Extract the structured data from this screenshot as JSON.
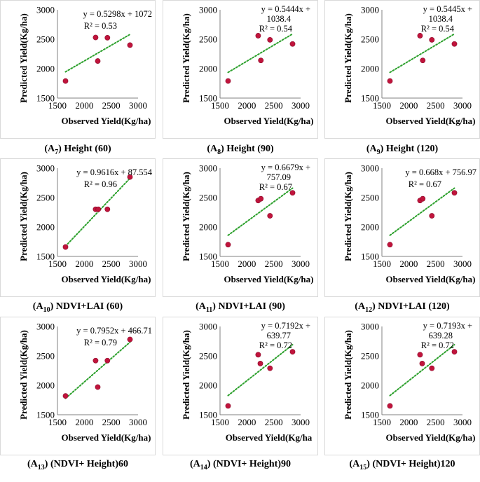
{
  "colors": {
    "point": "#c0143c",
    "trendline": "#2ca02c",
    "axis": "#808080",
    "border": "#d9d9d9"
  },
  "chart_data": [
    {
      "type": "scatter",
      "caption": {
        "prefix": "(A",
        "sub": "7",
        "suffix": ") Height (60)"
      },
      "xlabel": "Observed Yield(Kg/ha)",
      "ylabel": "Predicted Yield(Kg/ha)",
      "xlim": [
        1500,
        3000
      ],
      "ylim": [
        1500,
        3000
      ],
      "xticks": [
        "1500",
        "2000",
        "2500",
        "3000"
      ],
      "yticks": [
        "1500",
        "2000",
        "2500",
        "3000"
      ],
      "equation": [
        "y = 0.5298x + 1072"
      ],
      "r2": "R² = 0.53",
      "points": [
        {
          "x": 1650,
          "y": 1790
        },
        {
          "x": 2210,
          "y": 2530
        },
        {
          "x": 2250,
          "y": 2130
        },
        {
          "x": 2430,
          "y": 2525
        },
        {
          "x": 2850,
          "y": 2400
        }
      ],
      "trend": {
        "slope": 0.5298,
        "intercept": 1072,
        "x_range": [
          1650,
          2850
        ]
      }
    },
    {
      "type": "scatter",
      "caption": {
        "prefix": "(A",
        "sub": "8",
        "suffix": ") Height (90)"
      },
      "xlabel": "Observed Yield(Kg/ha)",
      "ylabel": "Predicted Yield(Kg/ha)",
      "xlim": [
        1500,
        3000
      ],
      "ylim": [
        1500,
        3000
      ],
      "xticks": [
        "1500",
        "2000",
        "2500",
        "3000"
      ],
      "yticks": [
        "1500",
        "2000",
        "2500",
        "3000"
      ],
      "equation": [
        "y = 0.5444x +",
        "1038.4"
      ],
      "r2": "R² = 0.54",
      "points": [
        {
          "x": 1650,
          "y": 1790
        },
        {
          "x": 2210,
          "y": 2560
        },
        {
          "x": 2260,
          "y": 2140
        },
        {
          "x": 2430,
          "y": 2490
        },
        {
          "x": 2850,
          "y": 2420
        }
      ],
      "trend": {
        "slope": 0.5444,
        "intercept": 1038.4,
        "x_range": [
          1650,
          2850
        ]
      }
    },
    {
      "type": "scatter",
      "caption": {
        "prefix": "(A",
        "sub": "9",
        "suffix": ") Height (120)"
      },
      "xlabel": "Observed Yield(Kg/ha)",
      "ylabel": "Predicted Yield(Kg/ha)",
      "xlim": [
        1500,
        3000
      ],
      "ylim": [
        1500,
        3000
      ],
      "xticks": [
        "1500",
        "2000",
        "2500",
        "3000"
      ],
      "yticks": [
        "1500",
        "2000",
        "2500",
        "3000"
      ],
      "equation": [
        "y = 0.5445x +",
        "1038.4"
      ],
      "r2": "R² = 0.54",
      "points": [
        {
          "x": 1650,
          "y": 1790
        },
        {
          "x": 2210,
          "y": 2560
        },
        {
          "x": 2260,
          "y": 2140
        },
        {
          "x": 2430,
          "y": 2490
        },
        {
          "x": 2850,
          "y": 2420
        }
      ],
      "trend": {
        "slope": 0.5445,
        "intercept": 1038.4,
        "x_range": [
          1650,
          2850
        ]
      }
    },
    {
      "type": "scatter",
      "caption": {
        "prefix": "(A",
        "sub": "10",
        "suffix": ") NDVI+LAI (60)"
      },
      "xlabel": "Observed Yield(Kg/ha)",
      "ylabel": "Predicted Yield(Kg/ha)",
      "xlim": [
        1500,
        3000
      ],
      "ylim": [
        1500,
        3000
      ],
      "xticks": [
        "1500",
        "2000",
        "2500",
        "3000"
      ],
      "yticks": [
        "1500",
        "2000",
        "2500",
        "3000"
      ],
      "equation": [
        "y = 0.9616x + 87.554"
      ],
      "r2": "R² = 0.96",
      "points": [
        {
          "x": 1650,
          "y": 1660
        },
        {
          "x": 2210,
          "y": 2300
        },
        {
          "x": 2260,
          "y": 2300
        },
        {
          "x": 2430,
          "y": 2300
        },
        {
          "x": 2850,
          "y": 2850
        }
      ],
      "trend": {
        "slope": 0.9616,
        "intercept": 87.554,
        "x_range": [
          1650,
          2850
        ]
      }
    },
    {
      "type": "scatter",
      "caption": {
        "prefix": "(A",
        "sub": "11",
        "suffix": ") NDVI+LAI (90)"
      },
      "xlabel": "Observed Yield(Kg/ha)",
      "ylabel": "Predicted Yield(Kg/ha)",
      "xlim": [
        1500,
        3000
      ],
      "ylim": [
        1500,
        3000
      ],
      "xticks": [
        "1500",
        "2000",
        "2500",
        "3000"
      ],
      "yticks": [
        "1500",
        "2000",
        "2500",
        "3000"
      ],
      "equation": [
        "y = 0.6679x +",
        "757.09"
      ],
      "r2": "R² = 0.67",
      "points": [
        {
          "x": 1650,
          "y": 1700
        },
        {
          "x": 2210,
          "y": 2450
        },
        {
          "x": 2260,
          "y": 2480
        },
        {
          "x": 2430,
          "y": 2190
        },
        {
          "x": 2850,
          "y": 2580
        }
      ],
      "trend": {
        "slope": 0.6679,
        "intercept": 757.09,
        "x_range": [
          1650,
          2850
        ]
      }
    },
    {
      "type": "scatter",
      "caption": {
        "prefix": "(A",
        "sub": "12",
        "suffix": ") NDVI+LAI (120)"
      },
      "xlabel": "Observed Yield(Kg/ha)",
      "ylabel": "Predicted Yield(Kg/ha)",
      "xlim": [
        1500,
        3000
      ],
      "ylim": [
        1500,
        3000
      ],
      "xticks": [
        "1500",
        "2000",
        "2500",
        "3000"
      ],
      "yticks": [
        "1500",
        "2000",
        "2500",
        "3000"
      ],
      "equation": [
        "y = 0.668x + 756.97"
      ],
      "r2": "R² = 0.67",
      "points": [
        {
          "x": 1650,
          "y": 1700
        },
        {
          "x": 2210,
          "y": 2450
        },
        {
          "x": 2260,
          "y": 2480
        },
        {
          "x": 2430,
          "y": 2190
        },
        {
          "x": 2850,
          "y": 2580
        }
      ],
      "trend": {
        "slope": 0.668,
        "intercept": 756.97,
        "x_range": [
          1650,
          2850
        ]
      }
    },
    {
      "type": "scatter",
      "caption": {
        "prefix": "(A",
        "sub": "13",
        "suffix": ") (NDVI+ Height)60"
      },
      "xlabel": "Observed Yield(Kg/ha)",
      "ylabel": "Predicted Yield(Kg/ha)",
      "xlim": [
        1500,
        3000
      ],
      "ylim": [
        1500,
        3000
      ],
      "xticks": [
        "1500",
        "2000",
        "2500",
        "3000"
      ],
      "yticks": [
        "1500",
        "2000",
        "2500",
        "3000"
      ],
      "equation": [
        "y = 0.7952x + 466.71"
      ],
      "r2": "R² = 0.79",
      "points": [
        {
          "x": 1650,
          "y": 1820
        },
        {
          "x": 2210,
          "y": 2420
        },
        {
          "x": 2250,
          "y": 1970
        },
        {
          "x": 2430,
          "y": 2420
        },
        {
          "x": 2850,
          "y": 2780
        }
      ],
      "trend": {
        "slope": 0.7952,
        "intercept": 466.71,
        "x_range": [
          1650,
          2850
        ]
      }
    },
    {
      "type": "scatter",
      "caption": {
        "prefix": "(A",
        "sub": "14",
        "suffix": ") (NDVI+ Height)90"
      },
      "xlabel": "Observed Yield(Kg/ha",
      "ylabel": "Predicted Yield(Kg/ha)",
      "xlim": [
        1500,
        3000
      ],
      "ylim": [
        1500,
        3000
      ],
      "xticks": [
        "1500",
        "2000",
        "2500",
        "3000"
      ],
      "yticks": [
        "1500",
        "2000",
        "2500",
        "3000"
      ],
      "equation": [
        "y = 0.7192x +",
        "639.77"
      ],
      "r2": "R² = 0.72",
      "points": [
        {
          "x": 1650,
          "y": 1650
        },
        {
          "x": 2210,
          "y": 2520
        },
        {
          "x": 2250,
          "y": 2370
        },
        {
          "x": 2430,
          "y": 2290
        },
        {
          "x": 2850,
          "y": 2570
        }
      ],
      "trend": {
        "slope": 0.7192,
        "intercept": 639.77,
        "x_range": [
          1650,
          2850
        ]
      }
    },
    {
      "type": "scatter",
      "caption": {
        "prefix": "(A",
        "sub": "15",
        "suffix": ") (NDVI+ Height)120"
      },
      "xlabel": "Observed Yield(Kg/ha)",
      "ylabel": "Predicted Yield(Kg/ha)",
      "xlim": [
        1500,
        3000
      ],
      "ylim": [
        1500,
        3000
      ],
      "xticks": [
        "1500",
        "2000",
        "2500",
        "3000"
      ],
      "yticks": [
        "1500",
        "2000",
        "2500",
        "3000"
      ],
      "equation": [
        "y = 0.7193x +",
        "639.28"
      ],
      "r2": "R² = 0.72",
      "points": [
        {
          "x": 1650,
          "y": 1650
        },
        {
          "x": 2210,
          "y": 2520
        },
        {
          "x": 2250,
          "y": 2370
        },
        {
          "x": 2430,
          "y": 2290
        },
        {
          "x": 2850,
          "y": 2570
        }
      ],
      "trend": {
        "slope": 0.7193,
        "intercept": 639.28,
        "x_range": [
          1650,
          2850
        ]
      }
    }
  ]
}
